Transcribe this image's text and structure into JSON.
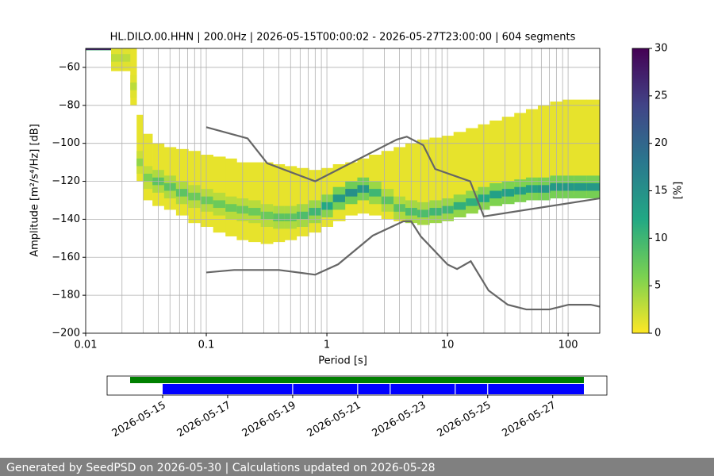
{
  "chart_data": {
    "type": "ppsd",
    "title": "HL.DILO.00.HHN | 200.0Hz | 2026-05-15T00:00:02 - 2026-05-27T23:00:00 | 604 segments",
    "xlabel": "Period [s]",
    "ylabel": "Amplitude [m²/s⁴/Hz] [dB]",
    "log_x": true,
    "grid": true,
    "xlim": [
      0.01,
      183
    ],
    "ylim": [
      -200,
      -50
    ],
    "xticks": [
      0.01,
      0.1,
      1,
      10,
      100
    ],
    "xgrid_minor": [
      0.02,
      0.03,
      0.04,
      0.05,
      0.06,
      0.07,
      0.08,
      0.09,
      0.2,
      0.3,
      0.4,
      0.5,
      0.6,
      0.7,
      0.8,
      0.9,
      2,
      3,
      4,
      5,
      6,
      7,
      8,
      9,
      20,
      30,
      40,
      50,
      60,
      70,
      80,
      90
    ],
    "yticks": [
      {
        "value": -200,
        "label": "−200"
      },
      {
        "value": -180,
        "label": "−180"
      },
      {
        "value": -160,
        "label": "−160"
      },
      {
        "value": -140,
        "label": "−140"
      },
      {
        "value": -120,
        "label": "−120"
      },
      {
        "value": -100,
        "label": "−100"
      },
      {
        "value": -80,
        "label": "−80"
      },
      {
        "value": -60,
        "label": "−60"
      }
    ],
    "colorbar": {
      "label": "[%]",
      "clim": [
        0,
        30
      ],
      "ticks": [
        0,
        5,
        10,
        15,
        20,
        25,
        30
      ],
      "colormap": [
        "#fde725",
        "#7ad151",
        "#22a884",
        "#2a788e",
        "#414487",
        "#440154"
      ]
    },
    "pdf": {
      "period": [
        0.012,
        0.022,
        0.025,
        0.028,
        0.032,
        0.04,
        0.05,
        0.063,
        0.08,
        0.1,
        0.13,
        0.16,
        0.2,
        0.25,
        0.32,
        0.4,
        0.5,
        0.63,
        0.8,
        1.0,
        1.26,
        1.6,
        2.0,
        2.5,
        3.2,
        4.0,
        5.0,
        6.3,
        8.0,
        10,
        12.6,
        16,
        20,
        25,
        32,
        40,
        50,
        63,
        80,
        100,
        126,
        160
      ],
      "low": [
        -51,
        -62,
        -80,
        -120,
        -130,
        -133,
        -135,
        -138,
        -142,
        -144,
        -147,
        -149,
        -151,
        -152,
        -153,
        -152,
        -151,
        -149,
        -147,
        -144,
        -141,
        -138,
        -137,
        -138,
        -140,
        -141,
        -140,
        -139,
        -139,
        -138,
        -137,
        -136,
        -134,
        -133,
        -131,
        -130,
        -129,
        -128,
        -128,
        -127,
        -127,
        -128
      ],
      "high": [
        -50,
        -50,
        -50,
        -85,
        -95,
        -100,
        -102,
        -103,
        -104,
        -106,
        -107,
        -108,
        -110,
        -110,
        -110,
        -111,
        -112,
        -113,
        -114,
        -113,
        -111,
        -110,
        -108,
        -106,
        -104,
        -102,
        -100,
        -98,
        -97,
        -96,
        -94,
        -92,
        -90,
        -88,
        -86,
        -84,
        -82,
        -80,
        -78,
        -77,
        -77,
        -77
      ],
      "mode": [
        -50.5,
        -55,
        -70,
        -110,
        -118,
        -120,
        -123,
        -126,
        -128,
        -130,
        -132,
        -134,
        -135,
        -136,
        -138,
        -139,
        -139,
        -138,
        -136,
        -133,
        -129,
        -126,
        -124,
        -126,
        -130,
        -134,
        -136,
        -137,
        -136,
        -135,
        -133,
        -131,
        -129,
        -127,
        -126,
        -125,
        -124,
        -124,
        -123,
        -123,
        -123,
        -123
      ],
      "peak": [
        30,
        3,
        3,
        5,
        6,
        8,
        8,
        8,
        7,
        7,
        7,
        7,
        7,
        7,
        7,
        8,
        8,
        9,
        10,
        12,
        14,
        15,
        14,
        10,
        8,
        8,
        9,
        9,
        10,
        10,
        11,
        11,
        12,
        13,
        13,
        13,
        13,
        14,
        14,
        14,
        14,
        14
      ]
    },
    "series": [
      {
        "name": "NHNM",
        "color": "#666666",
        "x": [
          0.1,
          0.22,
          0.32,
          0.8,
          3.8,
          4.6,
          6.3,
          7.9,
          15.4,
          20,
          183
        ],
        "values": [
          -91.5,
          -97.4,
          -110.5,
          -120,
          -98,
          -96.5,
          -101,
          -113.5,
          -120,
          -138.5,
          -129
        ]
      },
      {
        "name": "NLNM",
        "color": "#666666",
        "x": [
          0.1,
          0.17,
          0.4,
          0.8,
          1.24,
          2.4,
          4.3,
          5,
          6,
          10,
          12,
          15.6,
          21.9,
          31.6,
          45,
          70,
          101,
          154,
          183
        ],
        "values": [
          -168,
          -166.7,
          -166.7,
          -169.2,
          -163.7,
          -148.6,
          -141.1,
          -141.1,
          -149,
          -163.8,
          -166.2,
          -162.1,
          -177.5,
          -185,
          -187.5,
          -187.5,
          -185,
          -185,
          -186
        ]
      }
    ],
    "timeline": {
      "xlim": [
        "2026-05-13T07:00:00Z",
        "2026-05-28T16:00:00Z"
      ],
      "xticks": [
        "2026-05-15",
        "2026-05-17",
        "2026-05-19",
        "2026-05-21",
        "2026-05-23",
        "2026-05-25",
        "2026-05-27"
      ],
      "data_color": "#008000",
      "data_spans": [
        [
          "2026-05-14T00:00:00Z",
          "2026-05-27T23:00:00Z"
        ]
      ],
      "psd_color": "#0000ff",
      "psd_spans": [
        [
          "2026-05-15T00:00:00Z",
          "2026-05-18T23:40:00Z"
        ],
        [
          "2026-05-19T00:20:00Z",
          "2026-05-20T23:40:00Z"
        ],
        [
          "2026-05-21T00:20:00Z",
          "2026-05-21T23:40:00Z"
        ],
        [
          "2026-05-22T00:20:00Z",
          "2026-05-23T23:40:00Z"
        ],
        [
          "2026-05-24T00:20:00Z",
          "2026-05-24T23:40:00Z"
        ],
        [
          "2026-05-25T00:20:00Z",
          "2026-05-27T23:00:00Z"
        ]
      ]
    }
  },
  "footer": "Generated by SeedPSD on 2026-05-30 | Calculations updated on 2026-05-28"
}
